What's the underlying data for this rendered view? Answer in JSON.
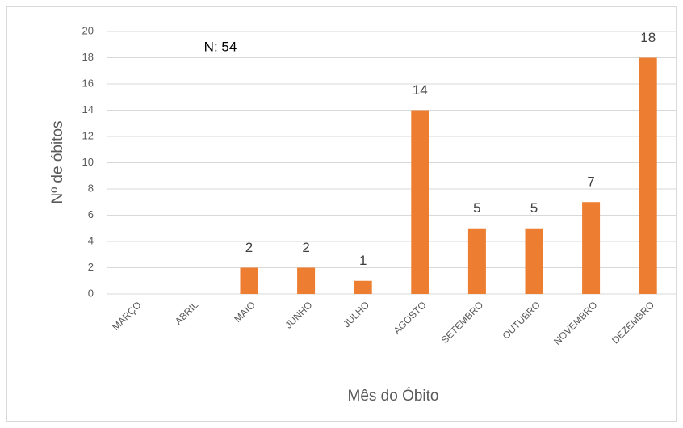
{
  "chart_data": {
    "type": "bar",
    "annotation": "N: 54",
    "xlabel": "Mês do Óbito",
    "ylabel": "Nº de óbitos",
    "categories": [
      "MARÇO",
      "ABRIL",
      "MAIO",
      "JUNHO",
      "JULHO",
      "AGOSTO",
      "SETEMBRO",
      "OUTUBRO",
      "NOVEMBRO",
      "DEZEMBRO"
    ],
    "values": [
      null,
      null,
      2,
      2,
      1,
      14,
      5,
      5,
      7,
      18
    ],
    "color": "#ed7d31",
    "ylim": [
      0,
      20
    ],
    "yticks": [
      0,
      2,
      4,
      6,
      8,
      10,
      12,
      14,
      16,
      18,
      20
    ],
    "grid": true
  }
}
